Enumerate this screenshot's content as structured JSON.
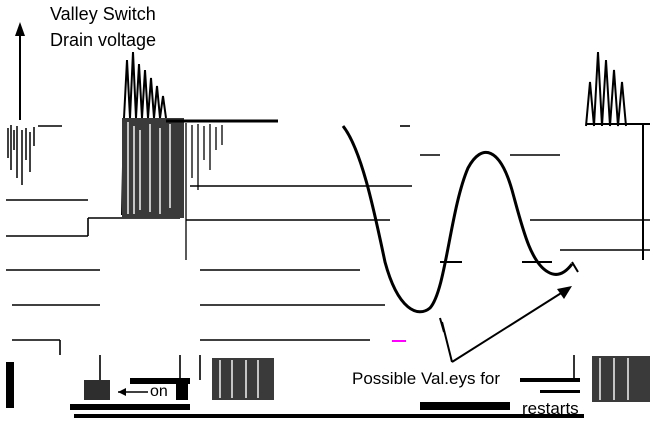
{
  "title_line1": "Valley Switch",
  "title_line2": "Drain voltage",
  "on_label": "on",
  "valleys_label_line1": "Possible Val.eys for",
  "valleys_label_line2": "restarts",
  "colors": {
    "ink": "#000000",
    "hatch": "#3a3a3a",
    "accent": "#ff00ff"
  }
}
